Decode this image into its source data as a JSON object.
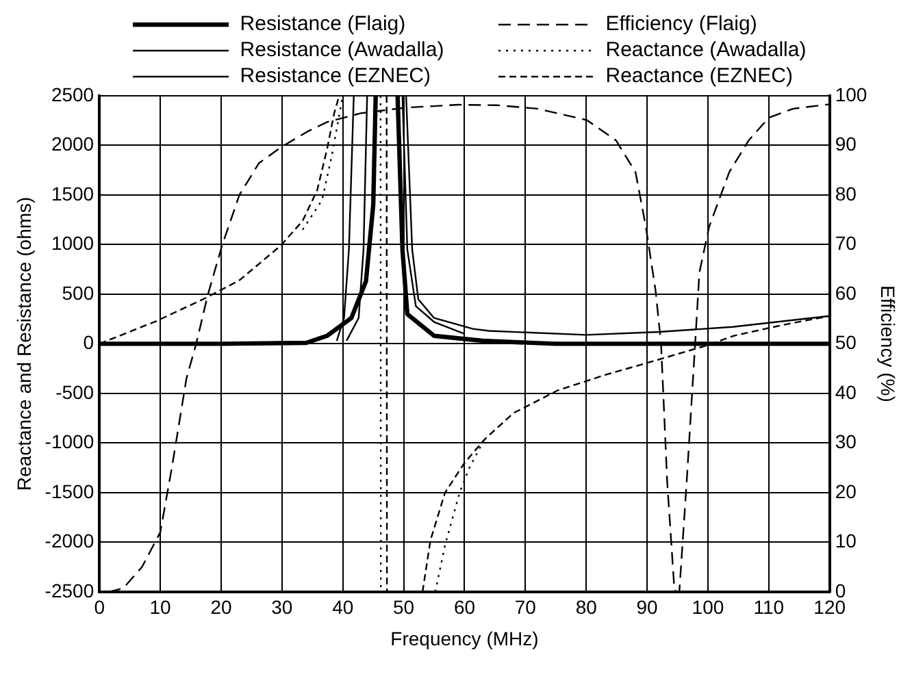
{
  "chart_data": {
    "type": "line",
    "xlabel": "Frequency (MHz)",
    "ylabel": "Reactance and Resistance (ohms)",
    "y2label": "Efficiency (%)",
    "xlim": [
      0,
      120
    ],
    "xticks": [
      0,
      10,
      20,
      30,
      40,
      50,
      60,
      70,
      80,
      90,
      100,
      110,
      120
    ],
    "ylim": [
      -2500,
      2500
    ],
    "yticks": [
      -2500,
      -2000,
      -1500,
      -1000,
      -500,
      0,
      500,
      1000,
      1500,
      2000,
      2500
    ],
    "y2lim": [
      0,
      100
    ],
    "y2ticks": [
      0,
      10,
      20,
      30,
      40,
      50,
      60,
      70,
      80,
      90,
      100
    ],
    "grid": true,
    "legend": "top",
    "marker": "none",
    "series": [
      {
        "name": "Resistance (Flaig)",
        "color": "#000000",
        "line_style": "solid",
        "x": [
          0,
          20,
          34,
          37.4,
          41.4,
          43.8,
          45,
          45.4,
          47,
          49,
          49.8,
          50.6,
          55,
          63,
          75,
          120
        ],
        "values": [
          0,
          0,
          10,
          80,
          260,
          630,
          1400,
          2500,
          null,
          2500,
          950,
          300,
          80,
          30,
          0,
          0
        ]
      },
      {
        "name": "Resistance (Awadalla)",
        "color": "#000000",
        "line_style": "solid",
        "x": [
          39,
          40.2,
          41,
          41.8,
          46,
          49.8,
          50.6,
          52,
          55,
          60
        ],
        "values": [
          30,
          260,
          950,
          2500,
          null,
          2500,
          950,
          380,
          220,
          100
        ]
      },
      {
        "name": "Resistance (EZNEC)",
        "color": "#000000",
        "line_style": "solid",
        "x": [
          40.6,
          42.6,
          43.4,
          44,
          46,
          50.4,
          51.4,
          52.4,
          55,
          61.4,
          64,
          80,
          92,
          104,
          120
        ],
        "values": [
          30,
          260,
          950,
          2500,
          null,
          2500,
          950,
          450,
          260,
          150,
          130,
          90,
          120,
          170,
          280
        ]
      },
      {
        "name": "Efficiency (Flaig)",
        "color": "#000000",
        "line_style": "dashed",
        "axis": "y2",
        "x": [
          1.5,
          3.9,
          7,
          10,
          11.9,
          14.3,
          15.9,
          17.8,
          20.2,
          23,
          26.2,
          29.8,
          34.2,
          37.4,
          43,
          50.2,
          59,
          65.4,
          72,
          80.1,
          84.9,
          88.1,
          89.8,
          91.4,
          92.3,
          93.3,
          94.5,
          95,
          95.3,
          96.5,
          97.9,
          98.6,
          100.2,
          103.5,
          106.7,
          110,
          114,
          120
        ],
        "values": [
          0,
          0.7,
          5,
          12,
          25,
          43,
          50,
          59.8,
          70,
          80,
          86.4,
          89.6,
          92.8,
          94.7,
          96.5,
          97.6,
          98.2,
          98.1,
          97.4,
          95.1,
          91,
          84.6,
          73.6,
          60.7,
          50,
          22.3,
          0.3,
          0,
          0,
          22,
          50,
          64.4,
          73.6,
          84.6,
          91,
          95.6,
          97.4,
          98.3
        ]
      },
      {
        "name": "Reactance (Awadalla)",
        "color": "#000000",
        "line_style": "dotted",
        "x": [
          33.4,
          36.6,
          38.2,
          39.4,
          40,
          43,
          46.2,
          46.25,
          50,
          55.2,
          56.8,
          59.2,
          60.8,
          63.2
        ],
        "values": [
          1150,
          1450,
          1900,
          2300,
          2500,
          null,
          2500,
          -2500,
          null,
          -2500,
          -2030,
          -1500,
          -1250,
          -970
        ]
      },
      {
        "name": "Reactance (EZNEC)",
        "color": "#000000",
        "line_style": "dashed",
        "x": [
          0,
          9.4,
          17.4,
          23,
          29.8,
          33.4,
          35.8,
          37.4,
          38.6,
          39.4,
          43,
          47.2,
          47.25,
          50,
          53.1,
          54.4,
          56.8,
          60,
          63.2,
          68,
          75.3,
          83.3,
          91.3,
          100.2,
          104.2,
          112.3,
          120
        ],
        "values": [
          0,
          230,
          460,
          640,
          990,
          1240,
          1550,
          1960,
          2330,
          2500,
          null,
          2500,
          -2500,
          null,
          -2500,
          -1980,
          -1500,
          -1200,
          -970,
          -700,
          -470,
          -310,
          -170,
          -10,
          80,
          190,
          280
        ]
      }
    ]
  }
}
